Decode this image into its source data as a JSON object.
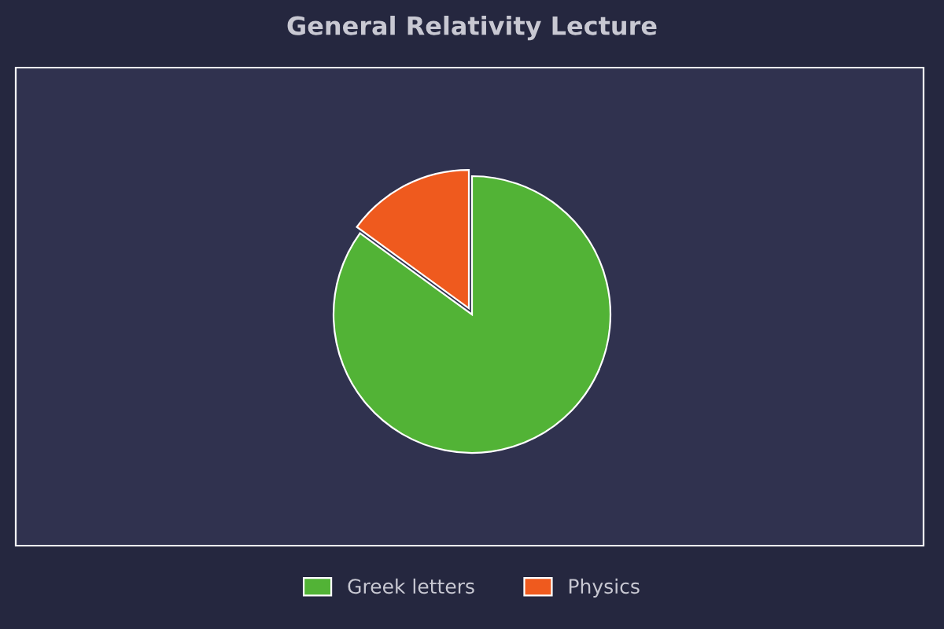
{
  "chart_data": {
    "type": "pie",
    "title": "General Relativity Lecture",
    "categories": [
      "Greek letters",
      "Physics"
    ],
    "values": [
      85,
      15
    ],
    "colors": [
      "#52b336",
      "#ef5a1e"
    ],
    "legend": "bottom"
  }
}
